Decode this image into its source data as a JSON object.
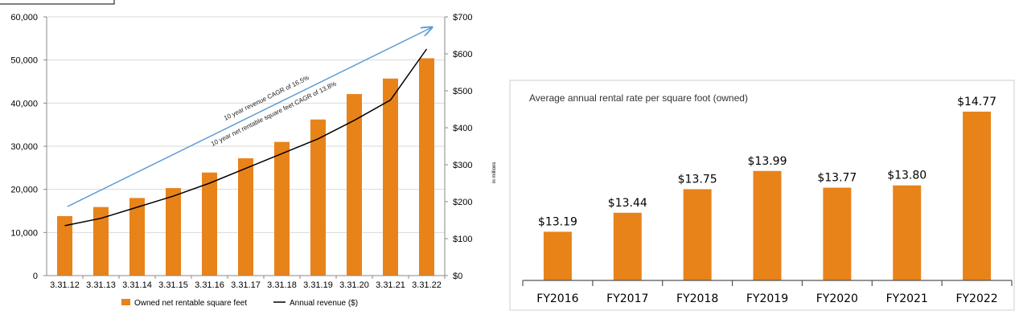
{
  "chart_data": [
    {
      "type": "bar",
      "categories": [
        "3.31.12",
        "3.31.13",
        "3.31.14",
        "3.31.15",
        "3.31.16",
        "3.31.17",
        "3.31.18",
        "3.31.19",
        "3.31.20",
        "3.31.21",
        "3.31.22"
      ],
      "series": [
        {
          "name": "Owned net rentable square feet",
          "type": "bar",
          "axis": "left",
          "color": "#e8831a",
          "values": [
            13800,
            15900,
            18000,
            20300,
            23900,
            27200,
            31000,
            36200,
            42100,
            45700,
            50400
          ]
        },
        {
          "name": "Annual revenue ($)",
          "type": "line",
          "axis": "right",
          "color": "#000000",
          "values": [
            135,
            155,
            185,
            215,
            250,
            290,
            330,
            370,
            420,
            475,
            613
          ]
        }
      ],
      "y_left": {
        "min": 0,
        "max": 60000,
        "ticks": [
          "0",
          "10,000",
          "20,000",
          "30,000",
          "40,000",
          "50,000",
          "60,000"
        ]
      },
      "y_right": {
        "min": 0,
        "max": 700,
        "ticks": [
          "$0",
          "$100",
          "$200",
          "$300",
          "$400",
          "$500",
          "$600",
          "$700"
        ],
        "unit_label": "in millions"
      },
      "legend": [
        "Owned net rentable square feet",
        "Annual revenue ($)"
      ],
      "annotations": [
        "10 year revenue CAGR of 16.5%",
        "10 year net rentable square feet CAGR of 13.8%"
      ]
    },
    {
      "type": "bar",
      "title": "Average annual rental rate per square foot (owned)",
      "categories": [
        "FY2016",
        "FY2017",
        "FY2018",
        "FY2019",
        "FY2020",
        "FY2021",
        "FY2022"
      ],
      "values": [
        13.19,
        13.44,
        13.75,
        13.99,
        13.77,
        13.8,
        14.77
      ],
      "value_labels": [
        "$13.19",
        "$13.44",
        "$13.75",
        "$13.99",
        "$13.77",
        "$13.80",
        "$14.77"
      ],
      "color": "#e8831a"
    }
  ]
}
